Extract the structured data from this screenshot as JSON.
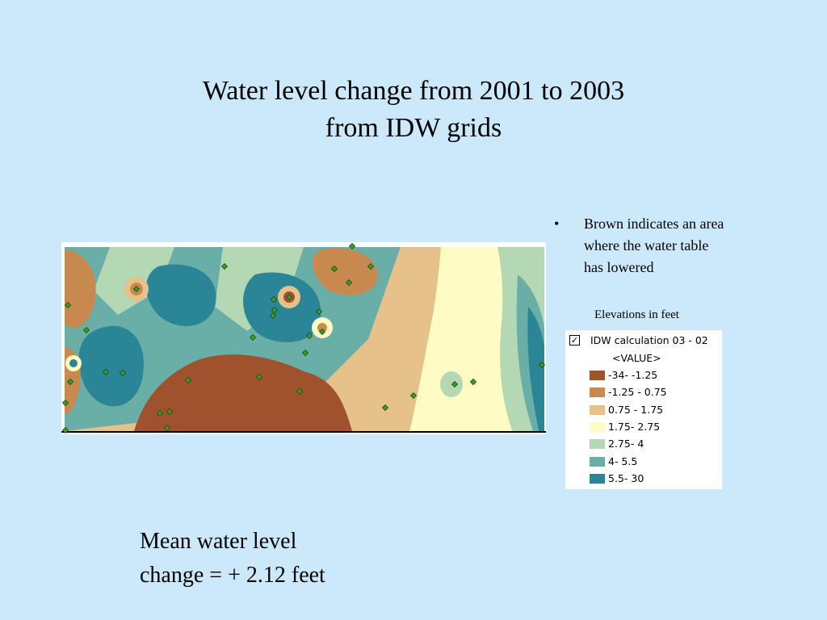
{
  "title": {
    "line1": "Water level change from 2001 to 2003",
    "line2": "from IDW grids"
  },
  "bullets": [
    {
      "marker": "•",
      "lines": [
        "Brown indicates an area",
        "where the water table",
        "has lowered"
      ]
    }
  ],
  "elevations_label": "Elevations in feet",
  "legend": {
    "checked": true,
    "checkbox_glyph": "✓",
    "layer_name": "IDW calculation 03 - 02",
    "field_name": "<VALUE>",
    "classes": [
      {
        "label": "-34- -1.25",
        "color": "#a0522d"
      },
      {
        "label": "-1.25 - 0.75",
        "color": "#c8894f"
      },
      {
        "label": "0.75 - 1.75",
        "color": "#e6c28a"
      },
      {
        "label": "1.75- 2.75",
        "color": "#fefbc4"
      },
      {
        "label": "2.75- 4",
        "color": "#b4d8b4"
      },
      {
        "label": "4- 5.5",
        "color": "#6aaea8"
      },
      {
        "label": "5.5- 30",
        "color": "#2a8597"
      }
    ]
  },
  "map": {
    "well_color": "#3a9a2a"
  },
  "mean": {
    "line1": "Mean water level",
    "line2": "change = + 2.12 feet"
  }
}
